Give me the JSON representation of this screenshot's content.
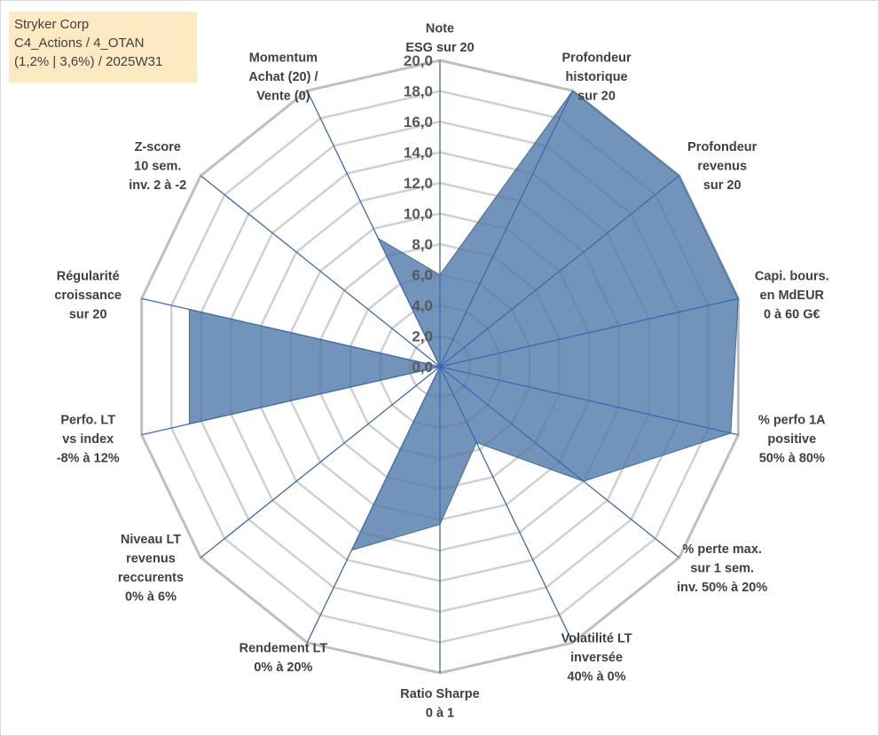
{
  "chart_data": {
    "type": "radar",
    "title_box": [
      "Stryker Corp",
      "C4_Actions / 4_OTAN",
      "(1,2% | 3,6%) / 2025W31"
    ],
    "rlim": [
      0,
      20
    ],
    "ticks": [
      "0,0",
      "2,0",
      "4,0",
      "6,0",
      "8,0",
      "10,0",
      "12,0",
      "14,0",
      "16,0",
      "18,0",
      "20,0"
    ],
    "grid": true,
    "series_color": "#4a76a8",
    "axes": [
      {
        "label": [
          "Note",
          "ESG sur 20"
        ],
        "value": 6.0
      },
      {
        "label": [
          "Profondeur",
          "historique",
          "sur 20"
        ],
        "value": 20.0
      },
      {
        "label": [
          "Profondeur",
          "revenus",
          "sur 20"
        ],
        "value": 20.0
      },
      {
        "label": [
          "Capi. bours.",
          "en MdEUR",
          "0 à 60 G€"
        ],
        "value": 20.0
      },
      {
        "label": [
          "% perfo 1A",
          "positive",
          "50% à 80%"
        ],
        "value": 19.5
      },
      {
        "label": [
          "% perte max.",
          "sur 1 sem.",
          "inv. 50% à 20%"
        ],
        "value": 12.0
      },
      {
        "label": [
          "Volatilité LT",
          "inversée",
          "40% à 0%"
        ],
        "value": 5.5
      },
      {
        "label": [
          "Ratio Sharpe",
          "0 à 1"
        ],
        "value": 10.3
      },
      {
        "label": [
          "Rendement LT",
          "0% à 20%"
        ],
        "value": 13.3
      },
      {
        "label": [
          "Niveau LT",
          "revenus",
          "reccurents",
          "0% à 6%"
        ],
        "value": 0.0
      },
      {
        "label": [
          "Perfo. LT",
          "vs index",
          "-8% à 12%"
        ],
        "value": 16.8
      },
      {
        "label": [
          "Régularité",
          "croissance",
          "sur 20"
        ],
        "value": 16.8
      },
      {
        "label": [
          "Z-score",
          "10 sem.",
          "inv. 2 à -2"
        ],
        "value": 0.0
      },
      {
        "label": [
          "Momentum",
          "Achat (20) /",
          "Vente (0)"
        ],
        "value": 9.3
      }
    ]
  }
}
